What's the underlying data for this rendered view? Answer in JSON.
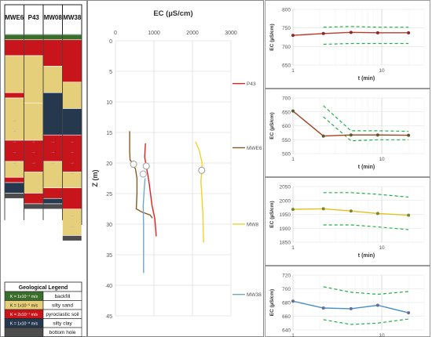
{
  "colors": {
    "backfill": "#3a6e2c",
    "silty_sand": "#e6cf7a",
    "pyroclastic_soil": "#c8151c",
    "silty_clay": "#26384e",
    "bottom_hole": "#4d4d4d",
    "P43": "#e02020",
    "MWE6": "#8b5a1e",
    "MW8": "#f2d030",
    "MW38": "#6aa8d8",
    "confidence": "#22b04a"
  },
  "columns": {
    "wells": [
      "MWE6",
      "P43",
      "MW08",
      "MW38"
    ],
    "bottom_depth_m": 45,
    "logs": [
      [
        {
          "layer": "backfill",
          "from": 0,
          "to": 1
        },
        {
          "layer": "pyroclastic_soil",
          "from": 1,
          "to": 4
        },
        {
          "layer": "silty_sand",
          "from": 4,
          "to": 11
        },
        {
          "layer": "pyroclastic_soil",
          "from": 11,
          "to": 12
        },
        {
          "layer": "silty_sand",
          "from": 12,
          "to": 20
        },
        {
          "layer": "pyroclastic_soil",
          "from": 20,
          "to": 24
        },
        {
          "layer": "silty_sand",
          "from": 24,
          "to": 27
        },
        {
          "layer": "pyroclastic_soil",
          "from": 27,
          "to": 28
        },
        {
          "layer": "silty_clay",
          "from": 28,
          "to": 30
        },
        {
          "layer": "bottom_hole",
          "from": 30,
          "to": 31
        }
      ],
      [
        {
          "layer": "backfill",
          "from": 0,
          "to": 1
        },
        {
          "layer": "pyroclastic_soil",
          "from": 1,
          "to": 4
        },
        {
          "layer": "silty_sand",
          "from": 4,
          "to": 13
        },
        {
          "layer": "silty_sand",
          "from": 13,
          "to": 20
        },
        {
          "layer": "pyroclastic_soil",
          "from": 20,
          "to": 26
        },
        {
          "layer": "silty_sand",
          "from": 26,
          "to": 30
        },
        {
          "layer": "pyroclastic_soil",
          "from": 30,
          "to": 32
        },
        {
          "layer": "bottom_hole",
          "from": 32,
          "to": 33
        }
      ],
      [
        {
          "layer": "backfill",
          "from": 0,
          "to": 1
        },
        {
          "layer": "pyroclastic_soil",
          "from": 1,
          "to": 6
        },
        {
          "layer": "silty_sand",
          "from": 6,
          "to": 11
        },
        {
          "layer": "silty_clay",
          "from": 11,
          "to": 19
        },
        {
          "layer": "pyroclastic_soil",
          "from": 19,
          "to": 24
        },
        {
          "layer": "silty_sand",
          "from": 24,
          "to": 29
        },
        {
          "layer": "pyroclastic_soil",
          "from": 29,
          "to": 31
        },
        {
          "layer": "silty_clay",
          "from": 31,
          "to": 32
        },
        {
          "layer": "bottom_hole",
          "from": 32,
          "to": 33
        }
      ],
      [
        {
          "layer": "backfill",
          "from": 0,
          "to": 1
        },
        {
          "layer": "pyroclastic_soil",
          "from": 1,
          "to": 9
        },
        {
          "layer": "silty_sand",
          "from": 9,
          "to": 14
        },
        {
          "layer": "silty_clay",
          "from": 14,
          "to": 19
        },
        {
          "layer": "pyroclastic_soil",
          "from": 19,
          "to": 26
        },
        {
          "layer": "silty_sand",
          "from": 26,
          "to": 29
        },
        {
          "layer": "pyroclastic_soil",
          "from": 29,
          "to": 33
        },
        {
          "layer": "silty_sand",
          "from": 33,
          "to": 38
        },
        {
          "layer": "bottom_hole",
          "from": 38,
          "to": 39
        }
      ]
    ],
    "legend_title": "Geological Legend",
    "legend": [
      {
        "layer": "backfill",
        "k_text": "K = 1x10⁻⁴ m/s",
        "label": "backfill"
      },
      {
        "layer": "silty_sand",
        "k_text": "K = 1x10⁻⁵ m/s",
        "label": "silty sand"
      },
      {
        "layer": "pyroclastic_soil",
        "k_text": "K = 2x10⁻⁷ m/s",
        "label": "pyroclastic soil"
      },
      {
        "layer": "silty_clay",
        "k_text": "K = 1x10⁻⁸ m/s",
        "label": "silty clay"
      },
      {
        "layer": "bottom_hole",
        "k_text": "",
        "label": "bottom hole"
      }
    ]
  },
  "chart_data": [
    {
      "type": "line",
      "title": "EC (µS/cm)",
      "ylabel": "Z (m)",
      "xlim": [
        0,
        3000
      ],
      "ylim": [
        45,
        0
      ],
      "xticks": [
        0,
        1000,
        2000,
        3000
      ],
      "yticks": [
        0,
        5,
        10,
        15,
        20,
        25,
        30,
        35,
        40,
        45
      ],
      "grid": true,
      "series": [
        {
          "name": "P43",
          "points": [
            [
              780,
              16.8
            ],
            [
              760,
              19
            ],
            [
              800,
              20.5
            ],
            [
              870,
              23
            ],
            [
              950,
              27
            ],
            [
              1020,
              29
            ],
            [
              1040,
              30.5
            ],
            [
              1060,
              32
            ]
          ]
        },
        {
          "name": "MWE6",
          "points": [
            [
              370,
              14.8
            ],
            [
              370,
              18
            ],
            [
              380,
              19.5
            ],
            [
              440,
              20
            ],
            [
              520,
              21
            ],
            [
              560,
              22.5
            ],
            [
              560,
              25
            ],
            [
              540,
              27.5
            ],
            [
              680,
              28
            ],
            [
              900,
              28.5
            ],
            [
              960,
              29
            ]
          ]
        },
        {
          "name": "MW8",
          "points": [
            [
              2080,
              16.5
            ],
            [
              2180,
              18
            ],
            [
              2250,
              20
            ],
            [
              2240,
              21.5
            ],
            [
              2220,
              23
            ],
            [
              2240,
              25
            ],
            [
              2270,
              28
            ],
            [
              2290,
              33
            ]
          ]
        },
        {
          "name": "MW38",
          "points": [
            [
              770,
              22.5
            ],
            [
              750,
              24
            ],
            [
              720,
              27
            ],
            [
              730,
              30
            ],
            [
              730,
              38
            ]
          ]
        }
      ],
      "markers": [
        {
          "series": "P43",
          "x": 800,
          "y": 20.5
        },
        {
          "series": "MWE6",
          "x": 470,
          "y": 20.2
        },
        {
          "series": "MW8",
          "x": 2240,
          "y": 21.2
        },
        {
          "series": "MW38",
          "x": 720,
          "y": 21.8
        }
      ],
      "legend": [
        "P43",
        "MWE6",
        "MW8",
        "MW38"
      ]
    },
    {
      "type": "line",
      "xlabel": "t (min)",
      "ylabel": "EC (µS/cm)",
      "xscale": "log",
      "xlim": [
        1,
        30
      ],
      "xticks": [
        1,
        10
      ],
      "ylim": [
        650,
        800
      ],
      "yticks": [
        650,
        700,
        750,
        800
      ],
      "series": [
        {
          "name": "P43",
          "x": [
            1,
            2.2,
            4.5,
            9,
            20
          ],
          "y": [
            730,
            735,
            738,
            737,
            737
          ]
        }
      ],
      "bounds": {
        "x": [
          2.2,
          4.5,
          9,
          20
        ],
        "upper": [
          752,
          754,
          752,
          752
        ],
        "lower": [
          706,
          708,
          708,
          708
        ]
      }
    },
    {
      "type": "line",
      "xlabel": "t (min)",
      "ylabel": "EC (µS/cm)",
      "xscale": "log",
      "xlim": [
        1,
        30
      ],
      "xticks": [
        1,
        10
      ],
      "ylim": [
        500,
        700
      ],
      "yticks": [
        500,
        550,
        600,
        650,
        700
      ],
      "series": [
        {
          "name": "MWE6",
          "x": [
            1,
            2.2,
            4.5,
            9,
            20
          ],
          "y": [
            653,
            563,
            567,
            567,
            566
          ]
        }
      ],
      "bounds": {
        "x": [
          2.2,
          4.5,
          9,
          20
        ],
        "upper": [
          672,
          582,
          582,
          580
        ],
        "lower": [
          632,
          546,
          550,
          550
        ]
      }
    },
    {
      "type": "line",
      "xlabel": "t (min)",
      "ylabel": "EC (µS/cm)",
      "xscale": "log",
      "xlim": [
        1,
        30
      ],
      "xticks": [
        1,
        10
      ],
      "ylim": [
        1850,
        2050
      ],
      "yticks": [
        1850,
        1900,
        1950,
        2000,
        2050
      ],
      "series": [
        {
          "name": "MW8",
          "x": [
            1,
            2.2,
            4.5,
            9,
            20
          ],
          "y": [
            1968,
            1970,
            1962,
            1953,
            1947
          ]
        }
      ],
      "bounds": {
        "x": [
          2.2,
          4.5,
          9,
          20
        ],
        "upper": [
          2028,
          2028,
          2022,
          2012
        ],
        "lower": [
          1912,
          1912,
          1905,
          1895
        ]
      }
    },
    {
      "type": "line",
      "xlabel": "t (min)",
      "ylabel": "EC (µS/cm)",
      "xscale": "log",
      "xlim": [
        1,
        30
      ],
      "xticks": [
        1,
        10
      ],
      "ylim": [
        640,
        720
      ],
      "yticks": [
        640,
        660,
        680,
        700,
        720
      ],
      "series": [
        {
          "name": "MW38",
          "x": [
            1,
            2.2,
            4.5,
            9,
            20
          ],
          "y": [
            682,
            672,
            671,
            676,
            665
          ]
        }
      ],
      "bounds": {
        "x": [
          2.2,
          4.5,
          9,
          20
        ],
        "upper": [
          703,
          695,
          692,
          696
        ],
        "lower": [
          655,
          648,
          650,
          656
        ]
      }
    }
  ]
}
